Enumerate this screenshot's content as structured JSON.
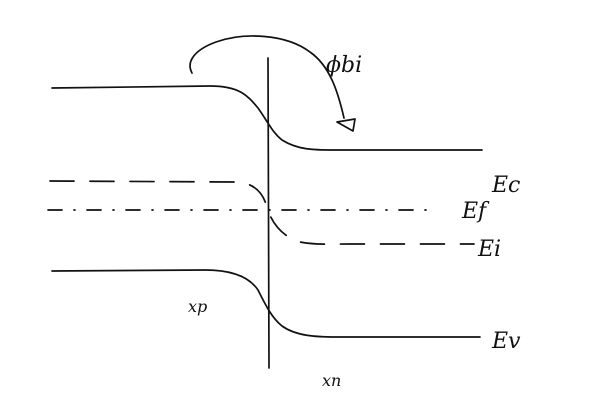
{
  "labels": {
    "built_in_potential": "ϕbi",
    "conduction_band": "Ec",
    "fermi_level": "Ef",
    "intrinsic_level": "Ei",
    "valence_band": "Ev",
    "depletion_edge_p": "xp",
    "depletion_edge_n": "xn"
  }
}
